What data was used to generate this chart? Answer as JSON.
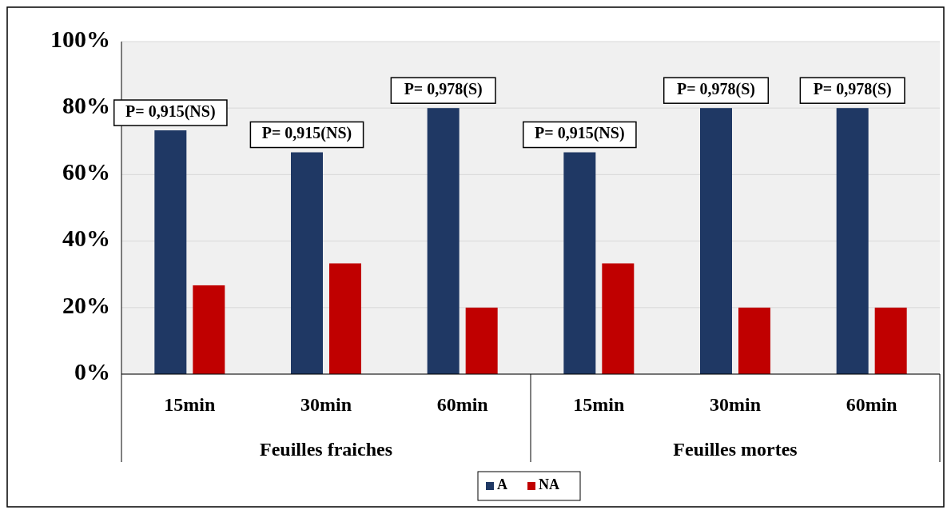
{
  "chart_data": {
    "type": "bar",
    "categories": [
      "15min",
      "30min",
      "60min",
      "15min",
      "30min",
      "60min"
    ],
    "series": [
      {
        "name": "A",
        "color": "#1f3864",
        "values": [
          73.3,
          66.7,
          80,
          66.7,
          80,
          80
        ]
      },
      {
        "name": "NA",
        "color": "#c00000",
        "values": [
          26.7,
          33.3,
          20,
          33.3,
          20,
          20
        ]
      }
    ],
    "ylim": [
      0,
      100
    ],
    "yticks": [
      {
        "value": 0,
        "label": "0%"
      },
      {
        "value": 20,
        "label": "20%"
      },
      {
        "value": 40,
        "label": "40%"
      },
      {
        "value": 60,
        "label": "60%"
      },
      {
        "value": 80,
        "label": "80%"
      },
      {
        "value": 100,
        "label": "100%"
      }
    ],
    "grid": "y",
    "legend": "bottom",
    "annotations": [
      "P= 0,915(NS)",
      "P= 0,915(NS)",
      "P= 0,978(S)",
      "P= 0,915(NS)",
      "P= 0,978(S)",
      "P= 0,978(S)",
      "Feuilles fraiches",
      "Feuilles mortes"
    ]
  }
}
